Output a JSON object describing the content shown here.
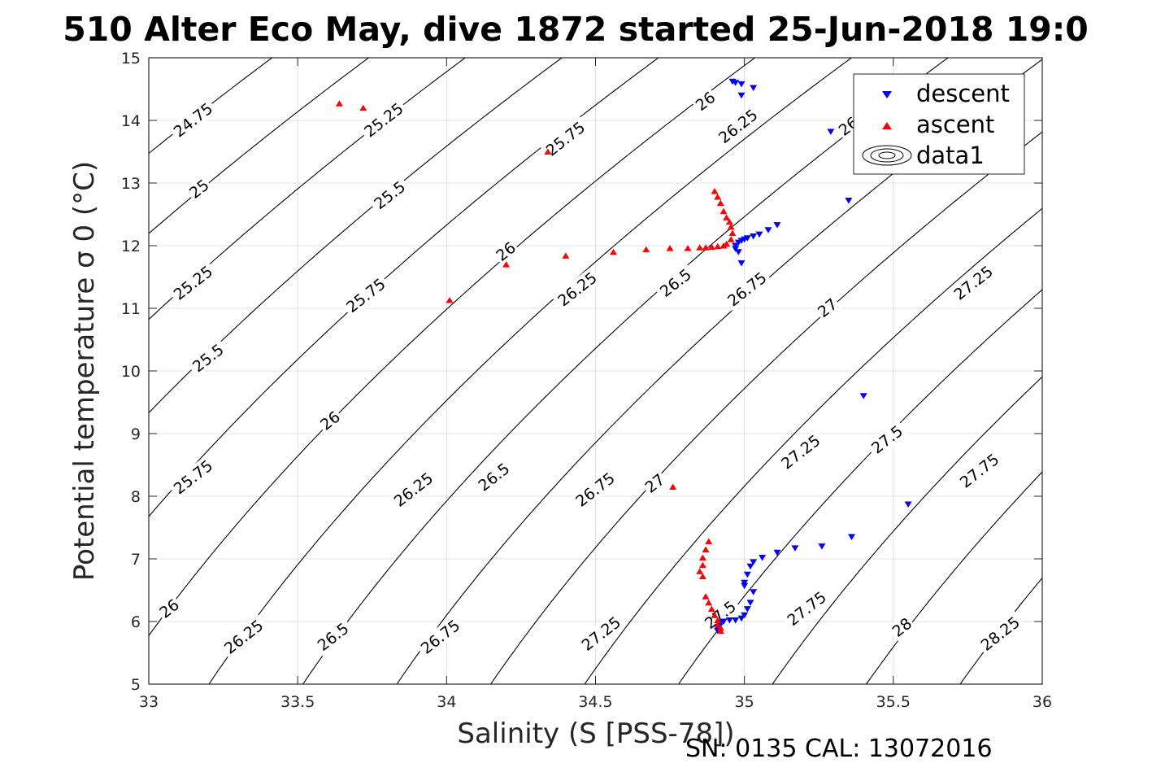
{
  "header": {
    "title": "510 Alter Eco May, dive 1872 started 25-Jun-2018 19:0",
    "footer": "SN: 0135  CAL: 13072016"
  },
  "chart_data": {
    "type": "scatter",
    "xlabel": "Salinity (S [PSS-78])",
    "ylabel": "Potential temperature σ 0 (°C)",
    "xlim": [
      33,
      36
    ],
    "ylim": [
      5,
      15
    ],
    "xticks": [
      33,
      33.5,
      34,
      34.5,
      35,
      35.5,
      36
    ],
    "yticks": [
      5,
      6,
      7,
      8,
      9,
      10,
      11,
      12,
      13,
      14,
      15
    ],
    "grid": true,
    "legend_position": "top-right",
    "legend": [
      "descent",
      "ascent",
      "data1"
    ],
    "colors": {
      "descent": "#0000ff",
      "ascent": "#ff0000",
      "contour": "#000000"
    },
    "contour_levels": [
      24.75,
      25,
      25.25,
      25.5,
      25.75,
      26,
      26.25,
      26.5,
      26.75,
      27,
      27.25,
      27.5,
      27.75,
      28,
      28.25
    ],
    "contour_labels": [
      {
        "text": "24.75",
        "x": 33.15,
        "y": 14.0
      },
      {
        "text": "25",
        "x": 33.17,
        "y": 12.9
      },
      {
        "text": "25.25",
        "x": 33.15,
        "y": 11.4
      },
      {
        "text": "25.5",
        "x": 33.2,
        "y": 10.2
      },
      {
        "text": "25.75",
        "x": 33.15,
        "y": 8.3
      },
      {
        "text": "26",
        "x": 33.07,
        "y": 6.2
      },
      {
        "text": "26.25",
        "x": 33.32,
        "y": 5.75
      },
      {
        "text": "25.25",
        "x": 33.79,
        "y": 14.0
      },
      {
        "text": "25.5",
        "x": 33.81,
        "y": 12.8
      },
      {
        "text": "25.75",
        "x": 33.73,
        "y": 11.2
      },
      {
        "text": "26",
        "x": 33.61,
        "y": 9.2
      },
      {
        "text": "26.25",
        "x": 33.89,
        "y": 8.1
      },
      {
        "text": "26.5",
        "x": 33.62,
        "y": 5.75
      },
      {
        "text": "26.75",
        "x": 33.98,
        "y": 5.75
      },
      {
        "text": "25.75",
        "x": 34.4,
        "y": 13.7
      },
      {
        "text": "26",
        "x": 34.2,
        "y": 11.9
      },
      {
        "text": "26.25",
        "x": 34.44,
        "y": 11.3
      },
      {
        "text": "26.5",
        "x": 34.16,
        "y": 8.3
      },
      {
        "text": "26.75",
        "x": 34.5,
        "y": 8.1
      },
      {
        "text": "27",
        "x": 34.7,
        "y": 8.2
      },
      {
        "text": "27.25",
        "x": 34.52,
        "y": 5.8
      },
      {
        "text": "26",
        "x": 34.87,
        "y": 14.3
      },
      {
        "text": "26.25",
        "x": 34.98,
        "y": 13.9
      },
      {
        "text": "26.5",
        "x": 34.77,
        "y": 11.4
      },
      {
        "text": "26.75",
        "x": 35.01,
        "y": 11.3
      },
      {
        "text": "27",
        "x": 35.28,
        "y": 11.0
      },
      {
        "text": "27.25",
        "x": 35.19,
        "y": 8.7
      },
      {
        "text": "27.5",
        "x": 34.92,
        "y": 6.1
      },
      {
        "text": "27.5",
        "x": 35.48,
        "y": 8.9
      },
      {
        "text": "27.25",
        "x": 35.77,
        "y": 11.4
      },
      {
        "text": "27.75",
        "x": 35.21,
        "y": 6.2
      },
      {
        "text": "27.75",
        "x": 35.79,
        "y": 8.4
      },
      {
        "text": "28",
        "x": 35.53,
        "y": 5.9
      },
      {
        "text": "28.25",
        "x": 35.86,
        "y": 5.8
      },
      {
        "text": "26",
        "x": 35.35,
        "y": 13.9
      }
    ],
    "series": [
      {
        "name": "descent",
        "marker": "triangle-down",
        "color": "#0000ff",
        "points": [
          [
            34.96,
            14.62
          ],
          [
            34.97,
            14.6
          ],
          [
            34.99,
            14.58
          ],
          [
            35.03,
            14.52
          ],
          [
            34.99,
            14.4
          ],
          [
            35.29,
            13.82
          ],
          [
            35.35,
            12.72
          ],
          [
            35.11,
            12.33
          ],
          [
            35.08,
            12.25
          ],
          [
            35.05,
            12.18
          ],
          [
            35.03,
            12.15
          ],
          [
            35.01,
            12.12
          ],
          [
            35.0,
            12.1
          ],
          [
            34.99,
            12.08
          ],
          [
            34.98,
            12.05
          ],
          [
            34.97,
            12.0
          ],
          [
            34.97,
            11.95
          ],
          [
            34.98,
            11.9
          ],
          [
            34.99,
            11.72
          ],
          [
            35.4,
            9.6
          ],
          [
            35.55,
            7.87
          ],
          [
            35.36,
            7.35
          ],
          [
            35.26,
            7.2
          ],
          [
            35.17,
            7.17
          ],
          [
            35.11,
            7.1
          ],
          [
            35.06,
            7.02
          ],
          [
            35.03,
            6.95
          ],
          [
            35.02,
            6.88
          ],
          [
            35.01,
            6.75
          ],
          [
            35.0,
            6.62
          ],
          [
            35.0,
            6.57
          ],
          [
            35.03,
            6.47
          ],
          [
            35.02,
            6.3
          ],
          [
            35.01,
            6.2
          ],
          [
            35.0,
            6.1
          ],
          [
            34.99,
            6.05
          ],
          [
            34.97,
            6.02
          ],
          [
            34.95,
            6.02
          ],
          [
            34.93,
            6.0
          ],
          [
            34.92,
            5.97
          ],
          [
            34.91,
            5.9
          ],
          [
            34.91,
            5.85
          ]
        ]
      },
      {
        "name": "ascent",
        "marker": "triangle-up",
        "color": "#ff0000",
        "points": [
          [
            33.64,
            14.27
          ],
          [
            33.72,
            14.2
          ],
          [
            34.34,
            13.5
          ],
          [
            34.9,
            12.87
          ],
          [
            34.91,
            12.78
          ],
          [
            34.92,
            12.68
          ],
          [
            34.93,
            12.55
          ],
          [
            34.94,
            12.45
          ],
          [
            34.95,
            12.38
          ],
          [
            34.955,
            12.3
          ],
          [
            34.96,
            12.2
          ],
          [
            34.955,
            12.1
          ],
          [
            34.94,
            12.03
          ],
          [
            34.93,
            12.0
          ],
          [
            34.91,
            11.99
          ],
          [
            34.89,
            11.98
          ],
          [
            34.87,
            11.97
          ],
          [
            34.85,
            11.97
          ],
          [
            34.81,
            11.96
          ],
          [
            34.75,
            11.96
          ],
          [
            34.67,
            11.94
          ],
          [
            34.56,
            11.9
          ],
          [
            34.4,
            11.84
          ],
          [
            34.2,
            11.7
          ],
          [
            34.01,
            11.13
          ],
          [
            34.76,
            8.15
          ],
          [
            34.88,
            7.28
          ],
          [
            34.87,
            7.15
          ],
          [
            34.86,
            7.02
          ],
          [
            34.86,
            6.9
          ],
          [
            34.85,
            6.8
          ],
          [
            34.86,
            6.72
          ],
          [
            34.87,
            6.4
          ],
          [
            34.88,
            6.3
          ],
          [
            34.89,
            6.2
          ],
          [
            34.9,
            6.1
          ],
          [
            34.91,
            6.02
          ],
          [
            34.91,
            5.95
          ],
          [
            34.92,
            5.9
          ],
          [
            34.92,
            5.85
          ]
        ]
      }
    ]
  }
}
